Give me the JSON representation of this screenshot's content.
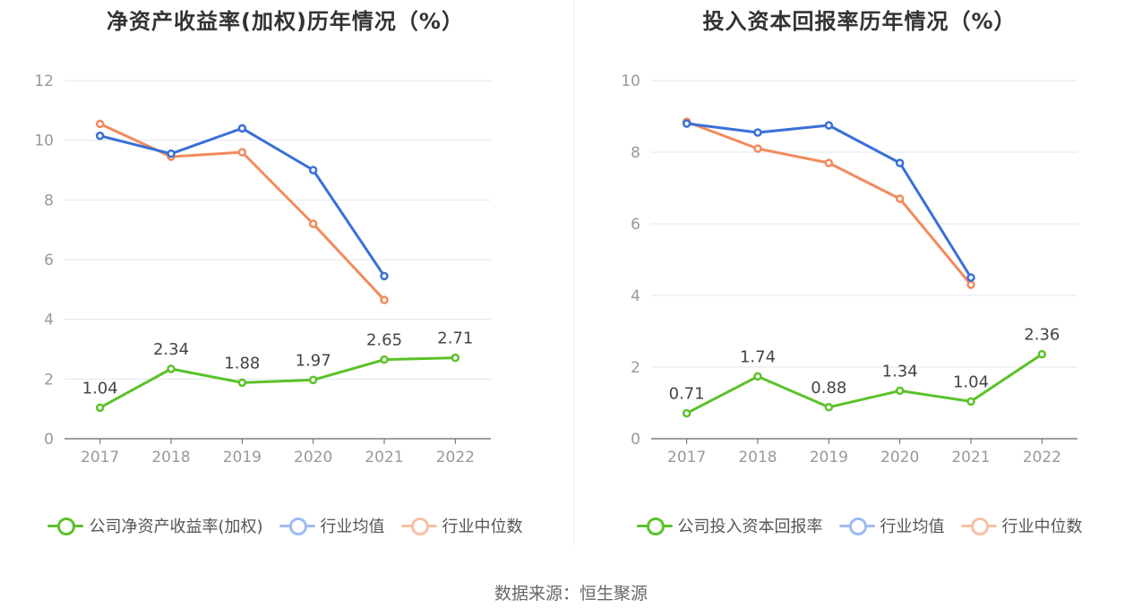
{
  "charts": [
    {
      "title": "净资产收益率(加权)历年情况（%）",
      "legend": [
        "公司净资产收益率(加权)",
        "行业均值",
        "行业中位数"
      ]
    },
    {
      "title": "投入资本回报率历年情况（%）",
      "legend": [
        "公司投入资本回报率",
        "行业均值",
        "行业中位数"
      ]
    }
  ],
  "source": "数据来源：恒生聚源",
  "colors": {
    "company": "#5ac229",
    "average": "#3a6fd8",
    "median": "#f28a5c",
    "grid": "#e3e6ef",
    "axis": "#666666"
  },
  "chart_data": [
    {
      "type": "line",
      "title": "净资产收益率(加权)历年情况（%）",
      "categories": [
        "2017",
        "2018",
        "2019",
        "2020",
        "2021",
        "2022"
      ],
      "ylim": [
        0,
        12
      ],
      "yticks": [
        0,
        2,
        4,
        6,
        8,
        10,
        12
      ],
      "grid": true,
      "legend_position": "bottom",
      "series": [
        {
          "name": "公司净资产收益率(加权)",
          "values": [
            1.04,
            2.34,
            1.88,
            1.97,
            2.65,
            2.71
          ],
          "labels": [
            "1.04",
            "2.34",
            "1.88",
            "1.97",
            "2.65",
            "2.71"
          ]
        },
        {
          "name": "行业均值",
          "values": [
            10.15,
            9.55,
            10.4,
            9.0,
            5.45,
            null
          ]
        },
        {
          "name": "行业中位数",
          "values": [
            10.55,
            9.45,
            9.6,
            7.2,
            4.65,
            null
          ]
        }
      ]
    },
    {
      "type": "line",
      "title": "投入资本回报率历年情况（%）",
      "categories": [
        "2017",
        "2018",
        "2019",
        "2020",
        "2021",
        "2022"
      ],
      "ylim": [
        0,
        10
      ],
      "yticks": [
        0,
        2,
        4,
        6,
        8,
        10
      ],
      "grid": true,
      "legend_position": "bottom",
      "series": [
        {
          "name": "公司投入资本回报率",
          "values": [
            0.71,
            1.74,
            0.88,
            1.34,
            1.04,
            2.36
          ],
          "labels": [
            "0.71",
            "1.74",
            "0.88",
            "1.34",
            "1.04",
            "2.36"
          ]
        },
        {
          "name": "行业均值",
          "values": [
            8.8,
            8.55,
            8.75,
            7.7,
            4.5,
            null
          ]
        },
        {
          "name": "行业中位数",
          "values": [
            8.85,
            8.1,
            7.7,
            6.7,
            4.3,
            null
          ]
        }
      ]
    }
  ]
}
